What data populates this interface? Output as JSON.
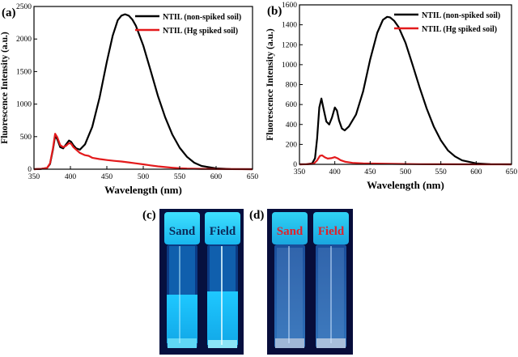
{
  "chart_data": [
    {
      "panel": "(a)",
      "type": "line",
      "xlabel": "Wavelength (nm)",
      "ylabel": "Fluorescence Intensity (a.u.)",
      "xlim": [
        350,
        650
      ],
      "ylim": [
        0,
        2500
      ],
      "xticks": [
        350,
        400,
        450,
        500,
        550,
        600,
        650
      ],
      "yticks": [
        0,
        500,
        1000,
        1500,
        2000,
        2500
      ],
      "legend_position": "top-right",
      "series": [
        {
          "name": "NTIL (non-spiked soil)",
          "color": "#000000",
          "x": [
            350,
            360,
            368,
            372,
            376,
            379,
            382,
            386,
            390,
            394,
            398,
            401,
            404,
            408,
            413,
            420,
            430,
            440,
            450,
            458,
            465,
            470,
            475,
            480,
            485,
            490,
            500,
            510,
            520,
            530,
            540,
            550,
            560,
            570,
            580,
            600,
            620,
            650
          ],
          "y": [
            0,
            5,
            20,
            80,
            300,
            510,
            460,
            340,
            320,
            380,
            440,
            420,
            370,
            320,
            300,
            380,
            650,
            1100,
            1650,
            2050,
            2290,
            2360,
            2380,
            2360,
            2300,
            2200,
            1900,
            1520,
            1130,
            800,
            530,
            330,
            190,
            100,
            50,
            12,
            3,
            0
          ]
        },
        {
          "name": "NTIL (Hg spiked soil)",
          "color": "#e31a1c",
          "x": [
            350,
            360,
            368,
            372,
            376,
            379,
            382,
            386,
            390,
            394,
            398,
            401,
            404,
            408,
            413,
            420,
            425,
            430,
            440,
            450,
            460,
            470,
            480,
            490,
            500,
            510,
            520,
            530,
            540,
            550,
            560,
            580,
            600,
            620,
            650
          ],
          "y": [
            0,
            5,
            20,
            90,
            320,
            545,
            490,
            370,
            340,
            360,
            400,
            390,
            340,
            300,
            250,
            215,
            205,
            175,
            155,
            140,
            128,
            118,
            105,
            90,
            75,
            58,
            44,
            32,
            22,
            15,
            10,
            5,
            2,
            1,
            0
          ]
        }
      ]
    },
    {
      "panel": "(b)",
      "type": "line",
      "xlabel": "Wavelength (nm)",
      "ylabel": "Fluorescence Intensity (a.u.)",
      "xlim": [
        350,
        650
      ],
      "ylim": [
        0,
        1600
      ],
      "xticks": [
        350,
        400,
        450,
        500,
        550,
        600,
        650
      ],
      "yticks": [
        0,
        200,
        400,
        600,
        800,
        1000,
        1200,
        1400,
        1600
      ],
      "legend_position": "top-right",
      "series": [
        {
          "name": "NTIL (non-spiked soil)",
          "color": "#000000",
          "x": [
            350,
            360,
            368,
            372,
            375,
            378,
            381,
            384,
            388,
            392,
            396,
            400,
            403,
            406,
            410,
            414,
            420,
            430,
            440,
            450,
            460,
            468,
            474,
            478,
            484,
            490,
            500,
            510,
            520,
            530,
            540,
            550,
            560,
            570,
            580,
            600,
            620,
            650
          ],
          "y": [
            0,
            2,
            10,
            60,
            260,
            570,
            660,
            560,
            430,
            400,
            470,
            570,
            540,
            440,
            360,
            340,
            380,
            500,
            730,
            1050,
            1320,
            1450,
            1480,
            1475,
            1440,
            1380,
            1220,
            1000,
            770,
            560,
            380,
            240,
            140,
            80,
            40,
            10,
            2,
            0
          ]
        },
        {
          "name": "NTIL (Hg spiked soil)",
          "color": "#e31a1c",
          "x": [
            350,
            360,
            370,
            375,
            379,
            382,
            386,
            390,
            395,
            400,
            404,
            408,
            415,
            425,
            440,
            460,
            480,
            500,
            520,
            550,
            600,
            650
          ],
          "y": [
            0,
            1,
            5,
            40,
            85,
            90,
            70,
            58,
            62,
            72,
            60,
            42,
            25,
            15,
            10,
            7,
            5,
            3,
            2,
            1,
            0,
            0
          ]
        }
      ]
    }
  ],
  "photos": [
    {
      "panel": "(c)",
      "vials": [
        {
          "label": "Sand",
          "label_color": "#0b2a5a"
        },
        {
          "label": "Field",
          "label_color": "#0b2a5a"
        }
      ]
    },
    {
      "panel": "(d)",
      "vials": [
        {
          "label": "Sand",
          "label_color": "#e0202a"
        },
        {
          "label": "Field",
          "label_color": "#e0202a"
        }
      ]
    }
  ]
}
